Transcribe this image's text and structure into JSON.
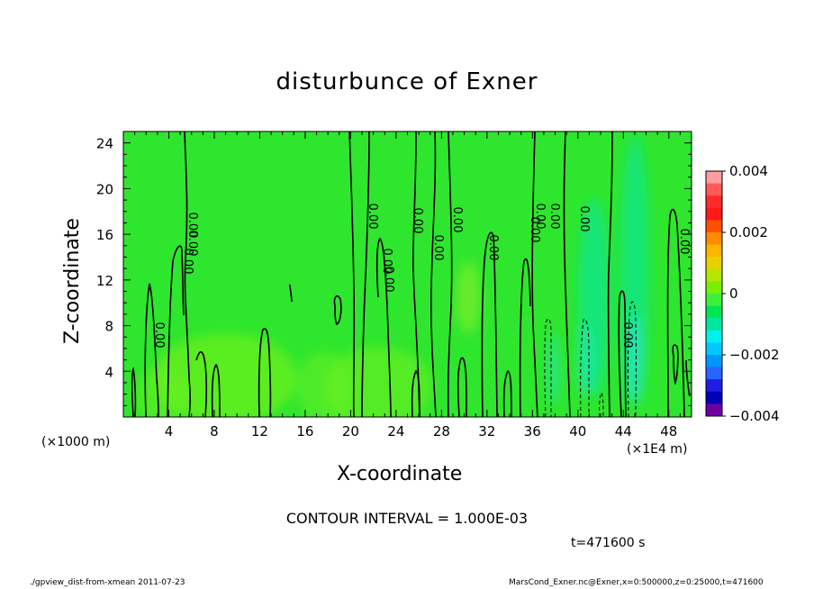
{
  "chart_data": {
    "type": "heatmap",
    "title": "disturbunce of Exner",
    "xlabel": "X-coordinate",
    "ylabel": "Z-coordinate",
    "x_unit_left": "(×1000 m)",
    "x_unit_right": "(×1E4 m)",
    "xlim": [
      0,
      50
    ],
    "ylim": [
      0,
      25
    ],
    "xticks": [
      "4",
      "8",
      "12",
      "16",
      "20",
      "24",
      "28",
      "32",
      "36",
      "40",
      "44",
      "48"
    ],
    "yticks": [
      "4",
      "8",
      "12",
      "16",
      "20",
      "24"
    ],
    "colorbar": {
      "range": [
        -0.004,
        0.004
      ],
      "labels": [
        "0.004",
        "0.002",
        "0",
        "−0.002",
        "−0.004"
      ],
      "colors": [
        "#ff9e9e",
        "#ff5a5a",
        "#ff2a2a",
        "#ff1818",
        "#ff5000",
        "#ff8c00",
        "#ffb400",
        "#e6d200",
        "#b4e600",
        "#78f000",
        "#3cf03c",
        "#00e650",
        "#00e6a0",
        "#00f0f0",
        "#00c8ff",
        "#0096ff",
        "#2864ff",
        "#1e1ee6",
        "#0000b4",
        "#6e00a0"
      ]
    },
    "contour_labels": [
      "0.00",
      "0.00",
      "0.00",
      "0.00",
      "0.00",
      "0.00",
      "0.00",
      "0.00",
      "0.00",
      "0.00",
      "0.00",
      "0.00",
      "0.00",
      "0.00",
      "0.00",
      "0.00",
      "0.00"
    ],
    "contour_interval_text": "CONTOUR INTERVAL = 1.000E-03",
    "time_text": "t=471600 s"
  },
  "footer": {
    "left": "./gpview_dist-from-xmean  2011-07-23",
    "right": "MarsCond_Exner.nc@Exner,x=0:500000,z=0:25000,t=471600"
  }
}
